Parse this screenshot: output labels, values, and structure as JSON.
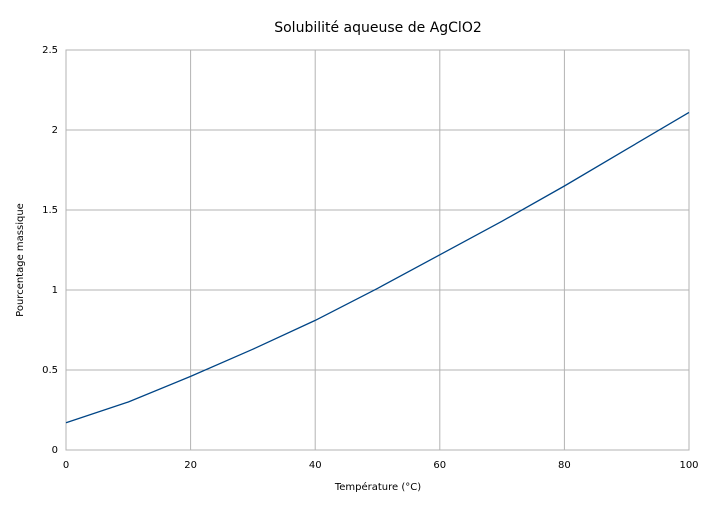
{
  "chart_data": {
    "type": "line",
    "title": "Solubilité aqueuse de AgClO2",
    "x_label": "Température  (°C)",
    "y_label": "Pourcentage massique",
    "x": [
      0,
      10,
      20,
      30,
      40,
      50,
      60,
      70,
      80,
      90,
      100
    ],
    "series": [
      {
        "color": "#004586",
        "values": [
          0.17,
          0.3,
          0.46,
          0.63,
          0.81,
          1.01,
          1.22,
          1.43,
          1.65,
          1.88,
          2.11
        ]
      }
    ],
    "xlim": [
      0,
      100
    ],
    "xticks": [
      0,
      20,
      40,
      60,
      80,
      100
    ],
    "ylim": [
      0,
      2.5
    ],
    "yticks": [
      0,
      0.5,
      1,
      1.5,
      2,
      2.5
    ],
    "grid": true
  }
}
